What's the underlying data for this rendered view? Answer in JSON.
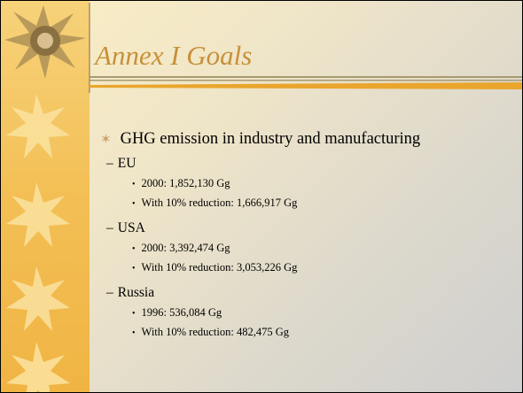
{
  "title": "Annex I Goals",
  "bullets": [
    {
      "text": "GHG emission in industry and manufacturing",
      "items": [
        {
          "label": "EU",
          "items": [
            "2000: 1,852,130 Gg",
            "With 10% reduction: 1,666,917 Gg"
          ]
        },
        {
          "label": "USA",
          "items": [
            "2000: 3,392,474 Gg",
            "With 10% reduction: 3,053,226 Gg"
          ]
        },
        {
          "label": "Russia",
          "items": [
            "1996: 536,084 Gg",
            "With 10% reduction: 482,475 Gg"
          ]
        }
      ]
    }
  ]
}
